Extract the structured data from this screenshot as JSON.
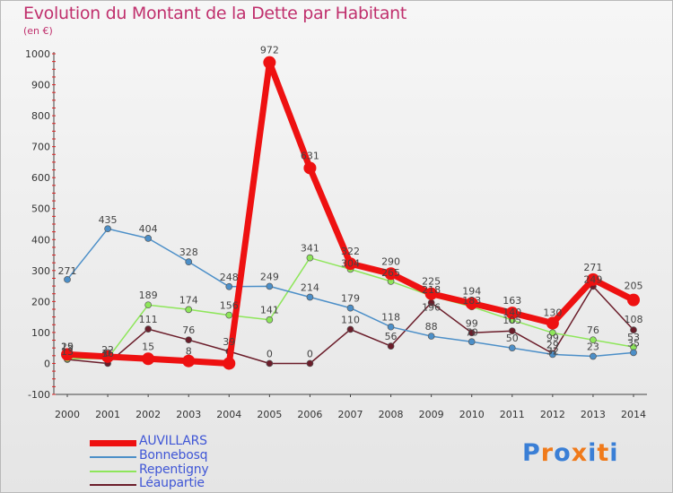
{
  "title": "Evolution du Montant de la Dette par Habitant",
  "subtitle": "(en €)",
  "logo": "Proxiti",
  "chart_data": {
    "type": "line",
    "ylim": [
      -100,
      1000
    ],
    "y_ticks": [
      -100,
      0,
      100,
      200,
      300,
      400,
      500,
      600,
      700,
      800,
      900,
      1000
    ],
    "grid": false,
    "legend_position": "bottom-left",
    "x": [
      2000,
      2001,
      2002,
      2003,
      2004,
      2005,
      2006,
      2007,
      2008,
      2009,
      2010,
      2011,
      2012,
      2013,
      2014
    ],
    "series": [
      {
        "name": "Léaupartie",
        "color": "#6b1d2a",
        "values": [
          13,
          0,
          111,
          76,
          39,
          0,
          0,
          110,
          56,
          196,
          99,
          105,
          32,
          249,
          108
        ]
      },
      {
        "name": "Repentigny",
        "color": "#8ee65a",
        "values": [
          15,
          16,
          189,
          174,
          156,
          141,
          341,
          304,
          265,
          218,
          183,
          140,
          99,
          76,
          53
        ]
      },
      {
        "name": "Bonnebosq",
        "color": "#4c8fc8",
        "values": [
          271,
          435,
          404,
          328,
          248,
          249,
          214,
          179,
          118,
          88,
          70,
          50,
          29,
          23,
          35
        ]
      },
      {
        "name": "AUVILLARS",
        "color": "#ee1111",
        "values": [
          29,
          22,
          15,
          8,
          0,
          972,
          631,
          322,
          290,
          225,
          194,
          163,
          130,
          271,
          205
        ]
      }
    ],
    "point_labels": [
      {
        "text": "29",
        "x": 2000,
        "y": 29,
        "dy": -5
      },
      {
        "text": "13",
        "x": 2000,
        "y": 13,
        "dy": -5
      },
      {
        "text": "15",
        "x": 2000,
        "y": 15,
        "dy": -10
      },
      {
        "text": "271",
        "x": 2000,
        "y": 271,
        "dy": -6
      },
      {
        "text": "22",
        "x": 2001,
        "y": 22,
        "dy": -4
      },
      {
        "text": "0",
        "x": 2001,
        "y": 0,
        "dy": -8
      },
      {
        "text": "16",
        "x": 2001,
        "y": 16,
        "dy": -2
      },
      {
        "text": "435",
        "x": 2001,
        "y": 435,
        "dy": -6
      },
      {
        "text": "15",
        "x": 2002,
        "y": 15,
        "dy": -10
      },
      {
        "text": "111",
        "x": 2002,
        "y": 111,
        "dy": -7
      },
      {
        "text": "189",
        "x": 2002,
        "y": 189,
        "dy": -7
      },
      {
        "text": "404",
        "x": 2002,
        "y": 404,
        "dy": -7
      },
      {
        "text": "8",
        "x": 2003,
        "y": 8,
        "dy": -7
      },
      {
        "text": "76",
        "x": 2003,
        "y": 76,
        "dy": -7
      },
      {
        "text": "174",
        "x": 2003,
        "y": 174,
        "dy": -7
      },
      {
        "text": "328",
        "x": 2003,
        "y": 328,
        "dy": -7
      },
      {
        "text": "39",
        "x": 2004,
        "y": 39,
        "dy": -7
      },
      {
        "text": "156",
        "x": 2004,
        "y": 156,
        "dy": -7
      },
      {
        "text": "248",
        "x": 2004,
        "y": 248,
        "dy": -7
      },
      {
        "text": "0",
        "x": 2005,
        "y": 0,
        "dy": -7
      },
      {
        "text": "141",
        "x": 2005,
        "y": 141,
        "dy": -7
      },
      {
        "text": "249",
        "x": 2005,
        "y": 249,
        "dy": -7
      },
      {
        "text": "972",
        "x": 2005,
        "y": 972,
        "dy": -10
      },
      {
        "text": "0",
        "x": 2006,
        "y": 0,
        "dy": -7
      },
      {
        "text": "214",
        "x": 2006,
        "y": 214,
        "dy": -7
      },
      {
        "text": "341",
        "x": 2006,
        "y": 341,
        "dy": -7
      },
      {
        "text": "631",
        "x": 2006,
        "y": 631,
        "dy": -10
      },
      {
        "text": "110",
        "x": 2007,
        "y": 110,
        "dy": -7
      },
      {
        "text": "179",
        "x": 2007,
        "y": 179,
        "dy": -7
      },
      {
        "text": "304",
        "x": 2007,
        "y": 304,
        "dy": -3
      },
      {
        "text": "322",
        "x": 2007,
        "y": 322,
        "dy": -10
      },
      {
        "text": "56",
        "x": 2008,
        "y": 56,
        "dy": -7
      },
      {
        "text": "118",
        "x": 2008,
        "y": 118,
        "dy": -7
      },
      {
        "text": "265",
        "x": 2008,
        "y": 265,
        "dy": -6
      },
      {
        "text": "290",
        "x": 2008,
        "y": 290,
        "dy": -10
      },
      {
        "text": "88",
        "x": 2009,
        "y": 88,
        "dy": -7
      },
      {
        "text": "196",
        "x": 2009,
        "y": 196,
        "dy": 9
      },
      {
        "text": "218",
        "x": 2009,
        "y": 218,
        "dy": -3
      },
      {
        "text": "225",
        "x": 2009,
        "y": 225,
        "dy": -10
      },
      {
        "text": "70",
        "x": 2010,
        "y": 70,
        "dy": -7
      },
      {
        "text": "99",
        "x": 2010,
        "y": 99,
        "dy": -7
      },
      {
        "text": "183",
        "x": 2010,
        "y": 183,
        "dy": -3
      },
      {
        "text": "194",
        "x": 2010,
        "y": 194,
        "dy": -10
      },
      {
        "text": "50",
        "x": 2011,
        "y": 50,
        "dy": -7
      },
      {
        "text": "105",
        "x": 2011,
        "y": 105,
        "dy": -8
      },
      {
        "text": "140",
        "x": 2011,
        "y": 140,
        "dy": -5
      },
      {
        "text": "163",
        "x": 2011,
        "y": 163,
        "dy": -10
      },
      {
        "text": "29",
        "x": 2012,
        "y": 29,
        "dy": -7
      },
      {
        "text": "32",
        "x": 2012,
        "y": 32,
        "dy": 1
      },
      {
        "text": "99",
        "x": 2012,
        "y": 99,
        "dy": 9
      },
      {
        "text": "130",
        "x": 2012,
        "y": 130,
        "dy": -8
      },
      {
        "text": "23",
        "x": 2013,
        "y": 23,
        "dy": -7
      },
      {
        "text": "76",
        "x": 2013,
        "y": 76,
        "dy": -7
      },
      {
        "text": "249",
        "x": 2013,
        "y": 249,
        "dy": -4
      },
      {
        "text": "271",
        "x": 2013,
        "y": 271,
        "dy": -10
      },
      {
        "text": "35",
        "x": 2014,
        "y": 35,
        "dy": -7
      },
      {
        "text": "53",
        "x": 2014,
        "y": 53,
        "dy": -7
      },
      {
        "text": "108",
        "x": 2014,
        "y": 108,
        "dy": -8
      },
      {
        "text": "205",
        "x": 2014,
        "y": 205,
        "dy": -12
      }
    ]
  },
  "legend": [
    {
      "label": "AUVILLARS",
      "color": "#ee1111"
    },
    {
      "label": "Bonnebosq",
      "color": "#4c8fc8"
    },
    {
      "label": "Repentigny",
      "color": "#8ee65a"
    },
    {
      "label": "Léaupartie",
      "color": "#6b1d2a"
    }
  ],
  "logo_colors": [
    "#3a7fd6",
    "#f07a1a",
    "#3a7fd6",
    "#f07a1a",
    "#3a7fd6",
    "#f07a1a",
    "#3a7fd6"
  ]
}
